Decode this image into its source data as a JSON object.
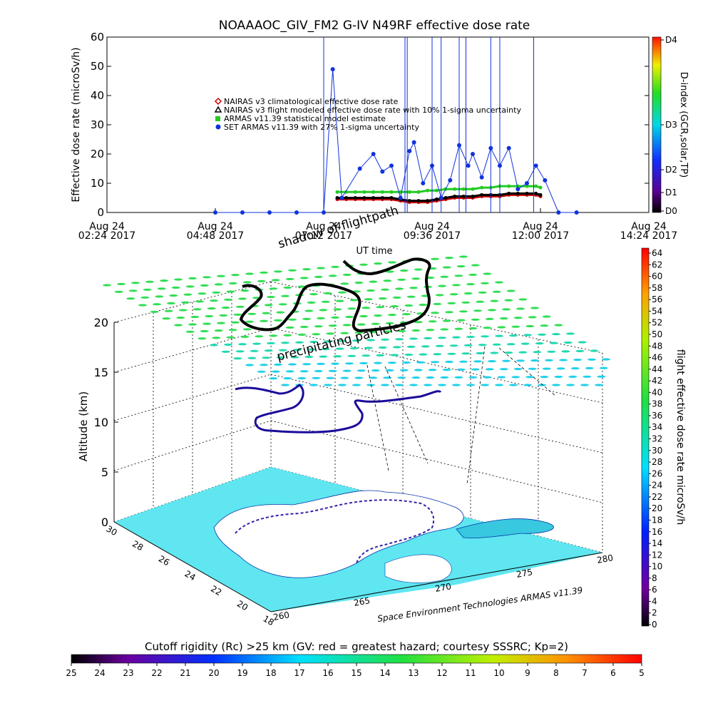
{
  "chart_data": [
    {
      "type": "line",
      "title": "NOAAAOC_GIV_FM2 G-IV   N49RF  effective dose rate",
      "ylabel": "Effective dose rate (microSv/h)",
      "xlabel": "UT time",
      "ylim": [
        0,
        60
      ],
      "yticks": [
        "0",
        "10",
        "20",
        "30",
        "40",
        "50",
        "60"
      ],
      "xlim_hours": [
        2.4,
        14.4
      ],
      "xticks": [
        {
          "day": "Aug 24",
          "time": "02:24 2017"
        },
        {
          "day": "Aug 24",
          "time": "04:48 2017"
        },
        {
          "day": "Aug 24",
          "time": "07:12 2017"
        },
        {
          "day": "Aug 24",
          "time": "09:36 2017"
        },
        {
          "day": "Aug 24",
          "time": "12:00 2017"
        },
        {
          "day": "Aug 24",
          "time": "14:24 2017"
        }
      ],
      "legend_position": "center-left",
      "legend": [
        {
          "label": "NAIRAS v3 climatological effective dose rate",
          "color": "#cc0000",
          "marker": "diamond"
        },
        {
          "label": "NAIRAS v3 flight modeled effective dose rate with 10% 1-sigma uncertainty",
          "color": "#000000",
          "marker": "triangle"
        },
        {
          "label": "ARMAS v11.39 statistical model estimate",
          "color": "#22cc22",
          "marker": "square"
        },
        {
          "label": "SET ARMAS v11.39 with 27% 1-sigma uncertainty",
          "color": "#1133dd",
          "marker": "circle"
        }
      ],
      "series": [
        {
          "key": "armas_model",
          "color": "#22cc22",
          "x": [
            7.5,
            7.7,
            7.9,
            8.1,
            8.3,
            8.5,
            8.7,
            8.9,
            9.1,
            9.3,
            9.5,
            9.7,
            9.9,
            10.1,
            10.3,
            10.5,
            10.7,
            10.9,
            11.1,
            11.3,
            11.5,
            11.7,
            11.9,
            12.0
          ],
          "y": [
            7,
            7,
            7,
            7,
            7,
            7,
            7,
            7,
            7,
            7,
            7.5,
            7.5,
            8,
            8,
            8,
            8,
            8.5,
            8.5,
            9,
            9,
            9,
            9,
            9,
            8.5
          ]
        },
        {
          "key": "nairas_climatological",
          "color": "#cc0000",
          "x": [
            7.5,
            7.7,
            7.9,
            8.1,
            8.3,
            8.5,
            8.7,
            8.9,
            9.1,
            9.3,
            9.5,
            9.7,
            9.9,
            10.1,
            10.3,
            10.5,
            10.7,
            10.9,
            11.1,
            11.3,
            11.5,
            11.7,
            11.9,
            12.0
          ],
          "y": [
            4.5,
            4.5,
            4.5,
            4.5,
            4.5,
            4.5,
            4.5,
            4,
            3.5,
            3.5,
            3.5,
            4,
            4.5,
            5,
            5,
            5,
            5.5,
            5.5,
            5.5,
            6,
            6,
            6,
            6,
            5.5
          ]
        },
        {
          "key": "nairas_flight",
          "color": "#000000",
          "x": [
            7.5,
            7.7,
            7.9,
            8.1,
            8.3,
            8.5,
            8.7,
            8.9,
            9.1,
            9.3,
            9.5,
            9.7,
            9.9,
            10.1,
            10.3,
            10.5,
            10.7,
            10.9,
            11.1,
            11.3,
            11.5,
            11.7,
            11.9,
            12.0
          ],
          "y": [
            5,
            5,
            5,
            5,
            5,
            5,
            5,
            4.5,
            4,
            4,
            4,
            4.5,
            5,
            5.5,
            5.5,
            5.5,
            6,
            6,
            6,
            6.5,
            6.5,
            6.5,
            6.5,
            6
          ]
        },
        {
          "key": "set_armas",
          "color": "#1133dd",
          "x": [
            4.8,
            5.4,
            6.0,
            6.6,
            7.2,
            7.4,
            7.6,
            8.0,
            8.3,
            8.5,
            8.7,
            8.9,
            9.1,
            9.2,
            9.4,
            9.6,
            9.8,
            10.0,
            10.2,
            10.4,
            10.5,
            10.7,
            10.9,
            11.1,
            11.3,
            11.5,
            11.7,
            11.9,
            12.1,
            12.4,
            12.8
          ],
          "y": [
            0,
            0,
            0,
            0,
            0,
            49,
            5,
            15,
            20,
            14,
            16,
            5,
            21,
            24,
            10,
            16,
            5,
            11,
            23,
            16,
            20,
            12,
            22,
            16,
            22,
            8,
            10,
            16,
            11,
            0,
            0
          ]
        }
      ],
      "top_colorbar": {
        "label": "D-index (GCR,solar,TP)",
        "ticks": [
          "D0",
          "D1",
          "D2",
          "D3",
          "D4"
        ]
      }
    },
    {
      "type": "scatter",
      "zlabel": "Altitude (km)",
      "zticks": [
        "0",
        "5",
        "10",
        "15",
        "20"
      ],
      "lat_ticks": [
        "30",
        "28",
        "26",
        "24",
        "22",
        "20",
        "18"
      ],
      "lon_ticks": [
        "260",
        "265",
        "270",
        "275",
        "280"
      ],
      "annotations": [
        "shadow of flightpath",
        "precipitating particles"
      ],
      "credit": "Space Environment Technologies ARMAS v11.39",
      "right_colorbar": {
        "label": "flight effective dose rate microSv/h",
        "ticks": [
          "0",
          "2",
          "4",
          "6",
          "8",
          "10",
          "12",
          "14",
          "16",
          "18",
          "20",
          "22",
          "24",
          "26",
          "28",
          "30",
          "32",
          "34",
          "36",
          "38",
          "40",
          "42",
          "44",
          "46",
          "48",
          "50",
          "52",
          "54",
          "56",
          "58",
          "60",
          "62",
          "64"
        ]
      },
      "bottom_colorbar": {
        "label": "Cutoff rigidity (Rc) >25 km (GV: red = greatest hazard; courtesy SSSRC; Kp=2)",
        "ticks": [
          "25",
          "24",
          "23",
          "22",
          "21",
          "20",
          "19",
          "18",
          "17",
          "16",
          "15",
          "14",
          "13",
          "12",
          "11",
          "10",
          "9",
          "8",
          "7",
          "6",
          "5"
        ]
      }
    }
  ]
}
